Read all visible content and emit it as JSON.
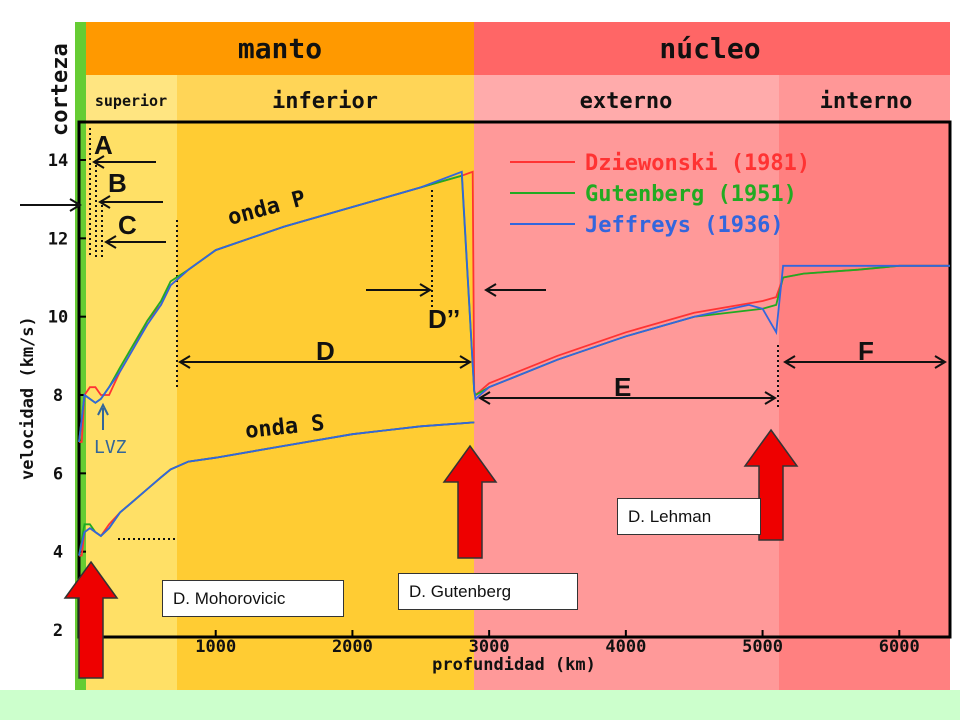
{
  "header": {
    "crust_label": "corteza",
    "mantle_label": "manto",
    "core_label": "núcleo",
    "upper_label": "superior",
    "lower_label": "inferior",
    "outer_label": "externo",
    "inner_label": "interno"
  },
  "zones": {
    "A": "A",
    "B": "B",
    "C": "C",
    "D": "D",
    "D2": "D’’",
    "E": "E",
    "F": "F"
  },
  "annotations": {
    "p_wave": "onda P",
    "s_wave": "onda S",
    "lvz": "LVZ"
  },
  "discontinuities": {
    "mohorovicic": "D. Mohorovicic",
    "gutenberg": "D. Gutenberg",
    "lehman": "D. Lehman"
  },
  "colors": {
    "mantle_header": "#ff9900",
    "core_header": "#ff6666",
    "upper_mantle": "#ffe066",
    "lower_mantle": "#ffcc33",
    "outer_core": "#ff9999",
    "inner_core": "#ff8080",
    "crust": "#66cc33",
    "dziewonski": "#ff3333",
    "gutenberg": "#22aa22",
    "jeffreys": "#3366dd",
    "arrow": "#ee0000",
    "footer": "#ccffcc"
  },
  "chart_data": {
    "type": "line",
    "xlabel": "profundidad (km)",
    "ylabel": "velocidad (km/s)",
    "xlim": [
      0,
      6371
    ],
    "ylim": [
      2,
      14.5
    ],
    "xticks": [
      1000,
      2000,
      3000,
      4000,
      5000,
      6000
    ],
    "yticks": [
      2,
      4,
      6,
      8,
      10,
      12,
      14
    ],
    "legend_position": "top-right",
    "series": [
      {
        "name": "Dziewonski (1981)",
        "color": "#ff3333",
        "p_wave": {
          "x": [
            0,
            20,
            40,
            80,
            120,
            160,
            220,
            300,
            400,
            500,
            600,
            670,
            800,
            1000,
            1500,
            2000,
            2500,
            2800,
            2880,
            2891,
            2900,
            3000,
            3500,
            4000,
            4500,
            5000,
            5100,
            5150,
            5300,
            5700,
            6000,
            6371
          ],
          "y": [
            6.8,
            6.8,
            8.0,
            8.2,
            8.2,
            8.0,
            8.0,
            8.6,
            9.2,
            9.9,
            10.3,
            10.8,
            11.2,
            11.7,
            12.3,
            12.8,
            13.3,
            13.6,
            13.7,
            8.1,
            8.0,
            8.3,
            9.0,
            9.6,
            10.1,
            10.4,
            10.5,
            11.0,
            11.1,
            11.2,
            11.3,
            11.3
          ]
        },
        "s_wave": {
          "x": [
            0,
            20,
            40,
            80,
            120,
            160,
            220,
            300,
            400,
            500,
            600,
            670,
            800,
            1000,
            1500,
            2000,
            2500,
            2891
          ],
          "y": [
            3.9,
            3.9,
            4.5,
            4.6,
            4.5,
            4.4,
            4.7,
            5.0,
            5.3,
            5.6,
            5.9,
            6.1,
            6.3,
            6.4,
            6.7,
            7.0,
            7.2,
            7.3
          ]
        }
      },
      {
        "name": "Gutenberg (1951)",
        "color": "#22aa22",
        "p_wave": {
          "x": [
            0,
            40,
            80,
            120,
            160,
            220,
            300,
            400,
            500,
            600,
            670,
            800,
            1000,
            1500,
            2000,
            2500,
            2800,
            2891,
            2900,
            3000,
            3500,
            4000,
            4500,
            5000,
            5100,
            5150,
            5300,
            5700,
            6000,
            6371
          ],
          "y": [
            6.8,
            8.0,
            7.9,
            7.8,
            7.9,
            8.2,
            8.7,
            9.3,
            9.9,
            10.4,
            10.9,
            11.2,
            11.7,
            12.3,
            12.8,
            13.3,
            13.6,
            8.1,
            8.0,
            8.2,
            8.9,
            9.5,
            10.0,
            10.2,
            10.3,
            11.0,
            11.1,
            11.2,
            11.3,
            11.3
          ]
        },
        "s_wave": {
          "x": [
            0,
            40,
            80,
            120,
            160,
            220,
            300,
            400,
            500,
            600,
            670,
            800,
            1000,
            1500,
            2000,
            2500,
            2891
          ],
          "y": [
            3.9,
            4.7,
            4.7,
            4.5,
            4.4,
            4.6,
            5.0,
            5.3,
            5.6,
            5.9,
            6.1,
            6.3,
            6.4,
            6.7,
            7.0,
            7.2,
            7.3
          ]
        }
      },
      {
        "name": "Jeffreys (1936)",
        "color": "#3366dd",
        "p_wave": {
          "x": [
            0,
            40,
            80,
            120,
            160,
            220,
            300,
            400,
            500,
            600,
            670,
            800,
            1000,
            1500,
            2000,
            2500,
            2800,
            2891,
            2900,
            3000,
            3500,
            4000,
            4500,
            4900,
            5000,
            5050,
            5100,
            5150,
            5300,
            5700,
            6000,
            6371
          ],
          "y": [
            6.8,
            8.0,
            7.9,
            7.8,
            7.9,
            8.2,
            8.6,
            9.2,
            9.8,
            10.3,
            10.8,
            11.2,
            11.7,
            12.3,
            12.8,
            13.3,
            13.7,
            8.1,
            7.9,
            8.2,
            8.9,
            9.5,
            10.0,
            10.3,
            10.2,
            9.9,
            9.6,
            11.3,
            11.3,
            11.3,
            11.3,
            11.3
          ]
        },
        "s_wave": {
          "x": [
            0,
            40,
            80,
            120,
            160,
            220,
            300,
            400,
            500,
            600,
            670,
            800,
            1000,
            1500,
            2000,
            2500,
            2891
          ],
          "y": [
            3.9,
            4.5,
            4.6,
            4.5,
            4.4,
            4.6,
            5.0,
            5.3,
            5.6,
            5.9,
            6.1,
            6.3,
            6.4,
            6.7,
            7.0,
            7.2,
            7.3
          ]
        }
      }
    ]
  }
}
